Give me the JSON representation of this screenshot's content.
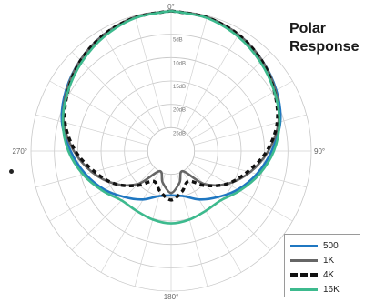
{
  "title_lines": [
    "Polar",
    "Response"
  ],
  "chart_data": {
    "type": "polar-line",
    "title": "Polar Response",
    "angle_labels": {
      "top": "0°",
      "right": "90°",
      "bottom": "180°",
      "left": "270°"
    },
    "ring_labels": [
      "5dB",
      "10dB",
      "15dB",
      "20dB",
      "25dB"
    ],
    "rings_db": [
      0,
      -5,
      -10,
      -15,
      -20,
      -25
    ],
    "radial_range_db": [
      -30,
      0
    ],
    "angles_deg": [
      0,
      15,
      30,
      45,
      60,
      75,
      90,
      105,
      120,
      135,
      150,
      165,
      180
    ],
    "series": [
      {
        "name": "500",
        "color": "#1f77c1",
        "style": "solid",
        "values_db": [
          0,
          -0.4,
          -1.2,
          -2.5,
          -4,
          -5.8,
          -8.5,
          -11,
          -13.5,
          -16,
          -18,
          -20,
          -20.5
        ]
      },
      {
        "name": "1K",
        "color": "#666666",
        "style": "solid",
        "values_db": [
          0,
          -0.3,
          -1.2,
          -2.5,
          -4.2,
          -6.2,
          -9.2,
          -12.5,
          -16,
          -20,
          -25,
          -23,
          -21
        ]
      },
      {
        "name": "4K",
        "color": "#111111",
        "style": "dashed",
        "values_db": [
          0,
          -0.4,
          -1.2,
          -2.6,
          -4.5,
          -6.5,
          -9.5,
          -13,
          -16,
          -19.5,
          -22.5,
          -21,
          -19.5
        ]
      },
      {
        "name": "16K",
        "color": "#3dba8e",
        "style": "solid",
        "values_db": [
          0,
          -0.5,
          -1.6,
          -3.0,
          -4.5,
          -6.0,
          -8.0,
          -10.5,
          -13,
          -15,
          -15.2,
          -14.8,
          -14.5
        ]
      }
    ]
  }
}
